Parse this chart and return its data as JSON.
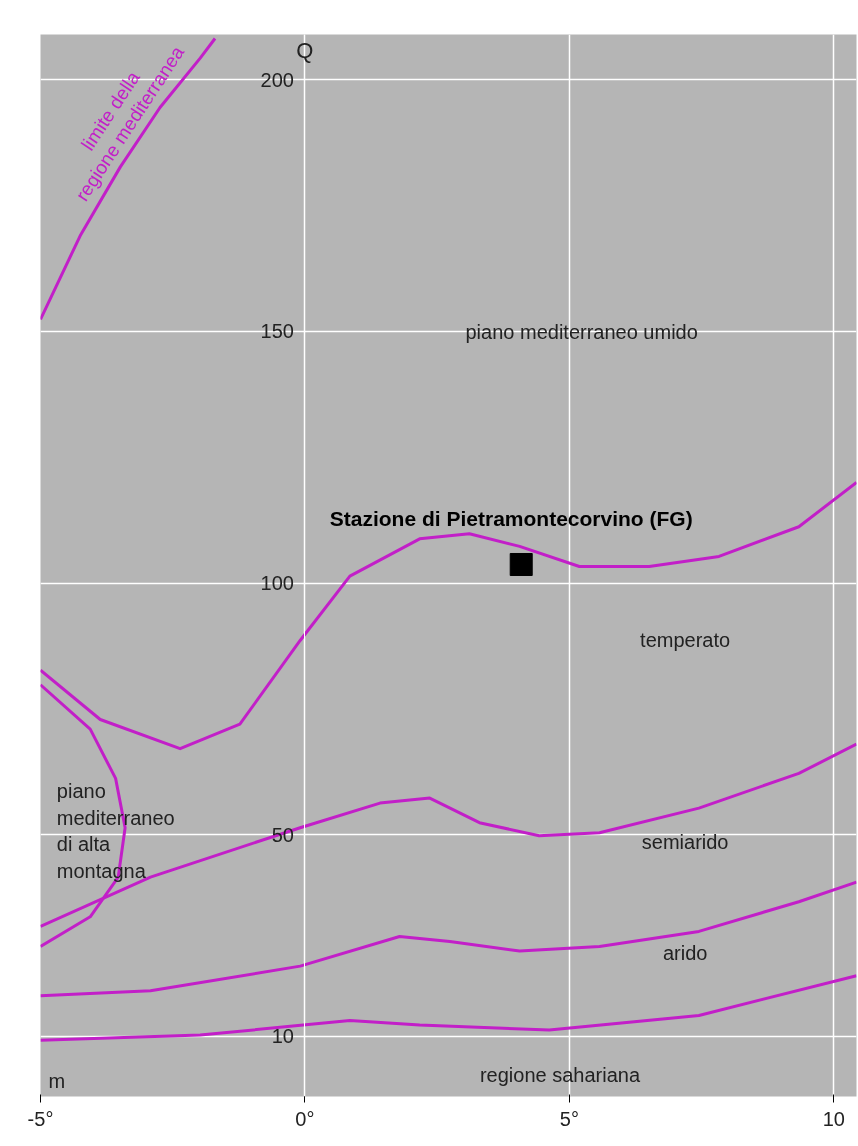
{
  "chart_data": {
    "type": "line",
    "xlabel": "m",
    "ylabel": "Q",
    "xlim": [
      -5,
      10.43
    ],
    "ylim": [
      -2,
      209
    ],
    "xticks": [
      {
        "value": -5,
        "label": "-5°"
      },
      {
        "value": 0,
        "label": "0°"
      },
      {
        "value": 5,
        "label": "5°"
      },
      10
    ],
    "yticks": [
      10,
      50,
      100,
      150,
      200
    ],
    "grid": true,
    "line_style": "solid",
    "series": [
      {
        "name": "limite della\nregione mediterranea",
        "color": "#c21fc8",
        "x": [
          -5,
          -4.25,
          -3.49,
          -2.74,
          -1.98,
          -1.7
        ],
        "values": [
          152.4,
          169.0,
          182.7,
          194.5,
          204.3,
          208.2
        ]
      },
      {
        "color": "#c21fc8",
        "x": [
          -5,
          -3.87,
          -2.36,
          -1.23,
          -0.09,
          0.85,
          2.17,
          3.11,
          4.06,
          5.19,
          6.51,
          7.83,
          9.34,
          10.43
        ],
        "values": [
          82.7,
          72.9,
          67.1,
          72.0,
          88.6,
          101.4,
          108.8,
          109.8,
          107.3,
          103.3,
          103.3,
          105.3,
          111.2,
          120.0
        ]
      },
      {
        "color": "#c21fc8",
        "x": [
          -5,
          -2.92,
          -0.09,
          1.42,
          2.36,
          3.3,
          4.43,
          5.57,
          7.45,
          9.34,
          10.43
        ],
        "values": [
          31.8,
          41.6,
          51.4,
          56.3,
          57.3,
          52.4,
          49.8,
          50.4,
          55.3,
          62.2,
          68.0
        ]
      },
      {
        "color": "#c21fc8",
        "x": [
          -5,
          -2.92,
          -0.09,
          1.79,
          2.74,
          4.06,
          5.57,
          7.45,
          9.34,
          10.43
        ],
        "values": [
          18.0,
          19.0,
          23.9,
          29.8,
          28.8,
          26.9,
          27.8,
          30.8,
          36.7,
          40.6
        ]
      },
      {
        "color": "#c21fc8",
        "x": [
          -5,
          -1.98,
          0.85,
          2.17,
          4.62,
          7.45,
          10.43
        ],
        "values": [
          9.2,
          10.2,
          13.1,
          12.2,
          11.2,
          14.1,
          22.0
        ]
      },
      {
        "color": "#c21fc8",
        "x": [
          -5,
          -4.06,
          -3.58,
          -3.4,
          -3.53,
          -4.06,
          -5
        ],
        "values": [
          79.8,
          71.0,
          61.2,
          51.4,
          41.6,
          33.7,
          27.8
        ]
      },
      {
        "name": "Stazione di Pietramontecorvino (FG)",
        "type": "scatter",
        "marker": "square",
        "color": "#000000",
        "x": [
          4.09
        ],
        "values": [
          103.7
        ]
      }
    ],
    "annotations": [
      "piano mediterraneo   umido",
      "temperato",
      "semiarido",
      "arido",
      "regione  sahariana",
      "piano\nmediterraneo\ndi alta\nmontagna"
    ]
  }
}
